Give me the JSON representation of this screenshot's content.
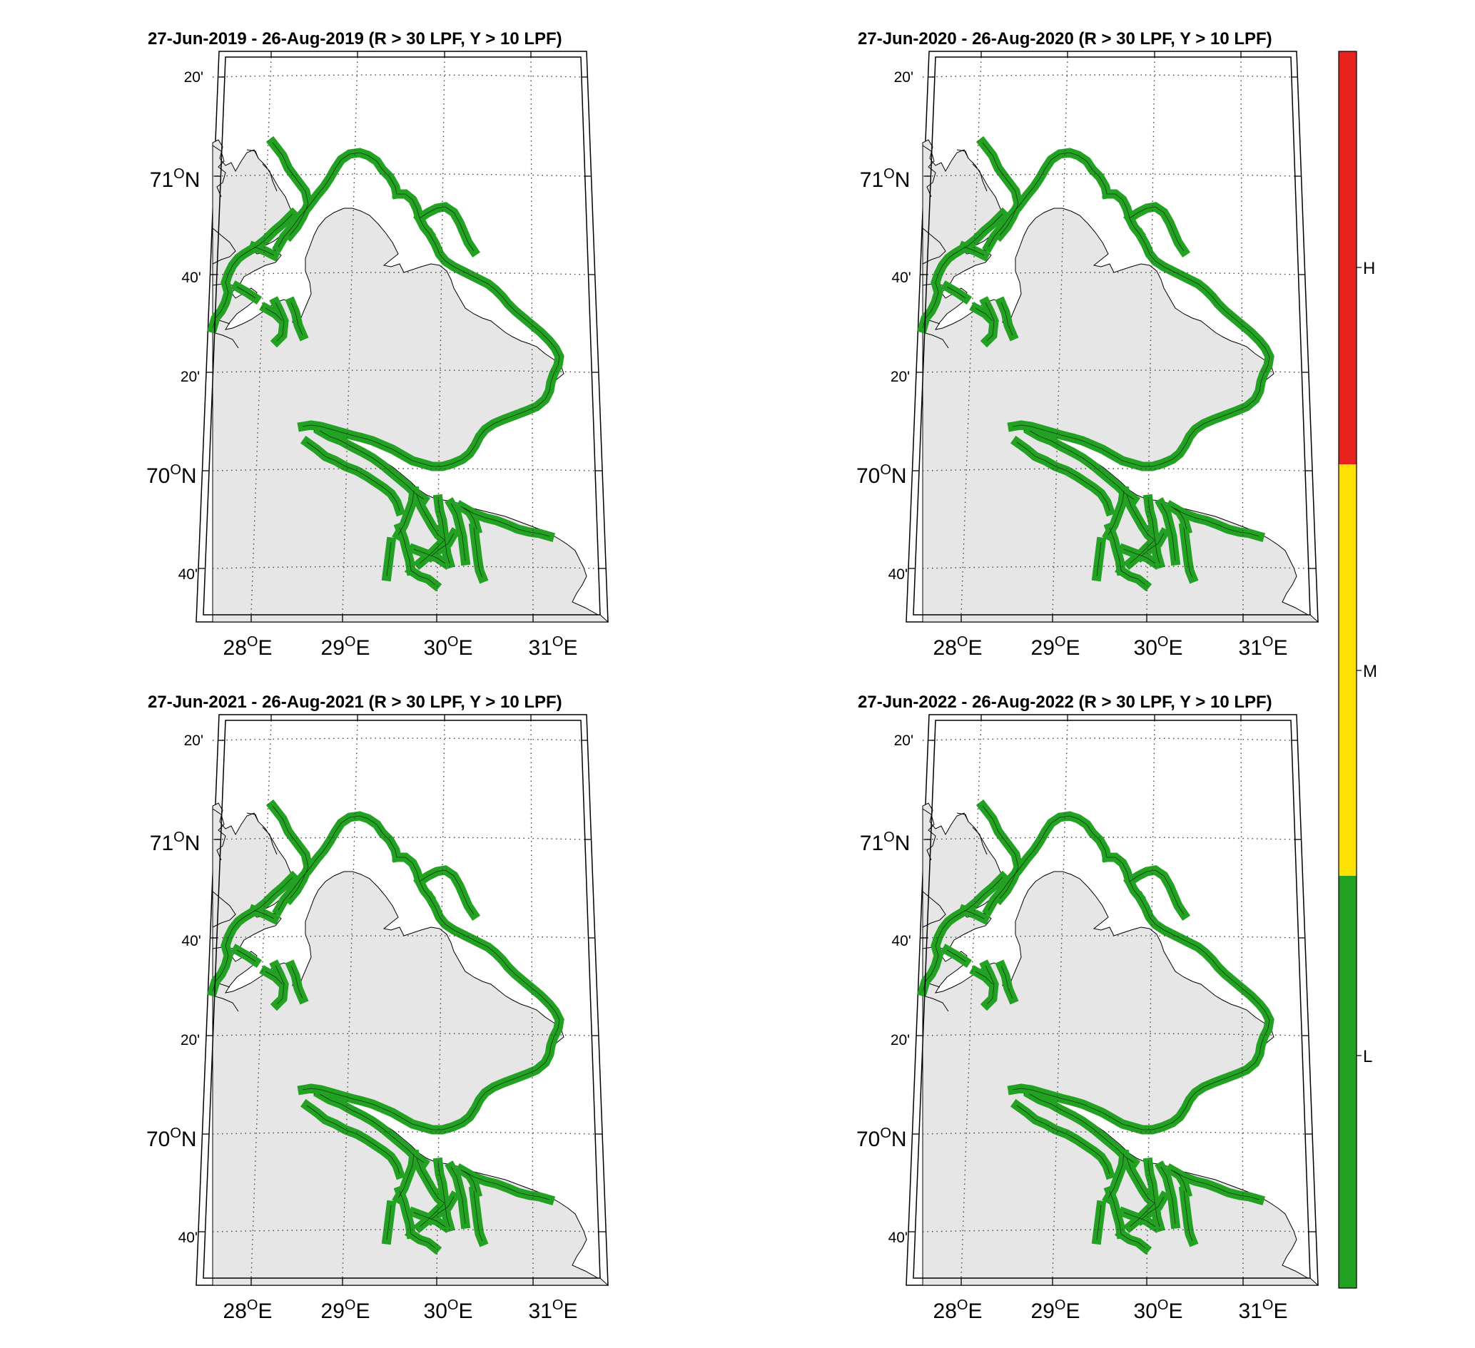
{
  "figure": {
    "panels": [
      {
        "id": "2019",
        "title": "27-Jun-2019  - 26-Aug-2019  (R > 30 LPF, Y > 10 LPF)"
      },
      {
        "id": "2020",
        "title": "27-Jun-2020  - 26-Aug-2020  (R > 30 LPF, Y > 10 LPF)"
      },
      {
        "id": "2021",
        "title": "27-Jun-2021  - 26-Aug-2021  (R > 30 LPF, Y > 10 LPF)"
      },
      {
        "id": "2022",
        "title": "27-Jun-2022  - 26-Aug-2022  (R > 30 LPF, Y > 10 LPF)"
      }
    ],
    "lat_ticks": [
      {
        "deg": "",
        "min": "20'"
      },
      {
        "deg": "71",
        "hem": "N"
      },
      {
        "deg": "",
        "min": "40'"
      },
      {
        "deg": "",
        "min": "20'"
      },
      {
        "deg": "70",
        "hem": "N"
      },
      {
        "deg": "",
        "min": "40'"
      }
    ],
    "lon_ticks": [
      {
        "deg": "28",
        "hem": "E"
      },
      {
        "deg": "29",
        "hem": "E"
      },
      {
        "deg": "30",
        "hem": "E"
      },
      {
        "deg": "31",
        "hem": "E"
      }
    ],
    "colorbar": {
      "levels": [
        {
          "label": "H",
          "color": "#e8231f"
        },
        {
          "label": "M",
          "color": "#ffe100"
        },
        {
          "label": "L",
          "color": "#22a122"
        }
      ]
    },
    "colors": {
      "land": "#e6e6e6",
      "coast_zone": "#22a122",
      "coastline": "#000000",
      "frame": "#000000",
      "grid": "#444444"
    }
  }
}
